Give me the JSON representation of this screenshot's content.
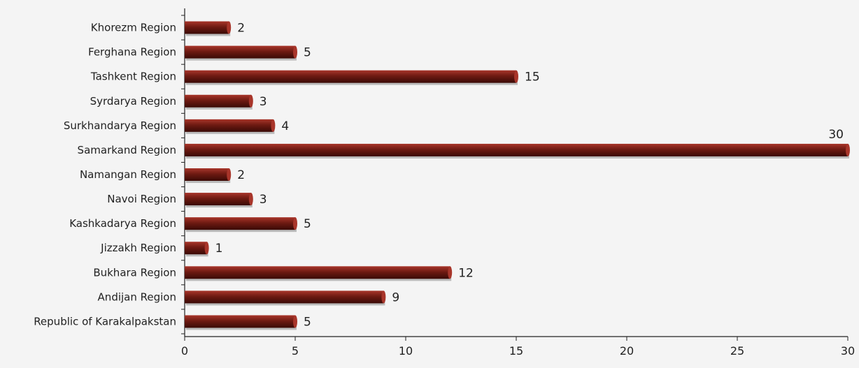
{
  "chart_data": {
    "type": "bar",
    "orientation": "horizontal",
    "categories": [
      "Khorezm Region",
      "Ferghana Region",
      "Tashkent Region",
      "Syrdarya Region",
      "Surkhandarya Region",
      "Samarkand Region",
      "Namangan Region",
      "Navoi Region",
      "Kashkadarya Region",
      "Jizzakh Region",
      "Bukhara Region",
      "Andijan Region",
      "Republic of Karakalpakstan"
    ],
    "values": [
      2,
      5,
      15,
      3,
      4,
      30,
      2,
      3,
      5,
      1,
      12,
      9,
      5
    ],
    "data_labels": [
      "2",
      "5",
      "15",
      "3",
      "4",
      "30",
      "2",
      "3",
      "5",
      "1",
      "12",
      "9",
      "5"
    ],
    "xticks": [
      "0",
      "5",
      "10",
      "15",
      "20",
      "25",
      "30"
    ],
    "xlim": [
      0,
      30
    ],
    "title": "",
    "xlabel": "",
    "ylabel": "",
    "grid": false,
    "legend": "none",
    "bar_color": "#6e1a12",
    "bar_highlight_color": "#a8352a",
    "bar_shadow_color": "#3a0a06"
  }
}
